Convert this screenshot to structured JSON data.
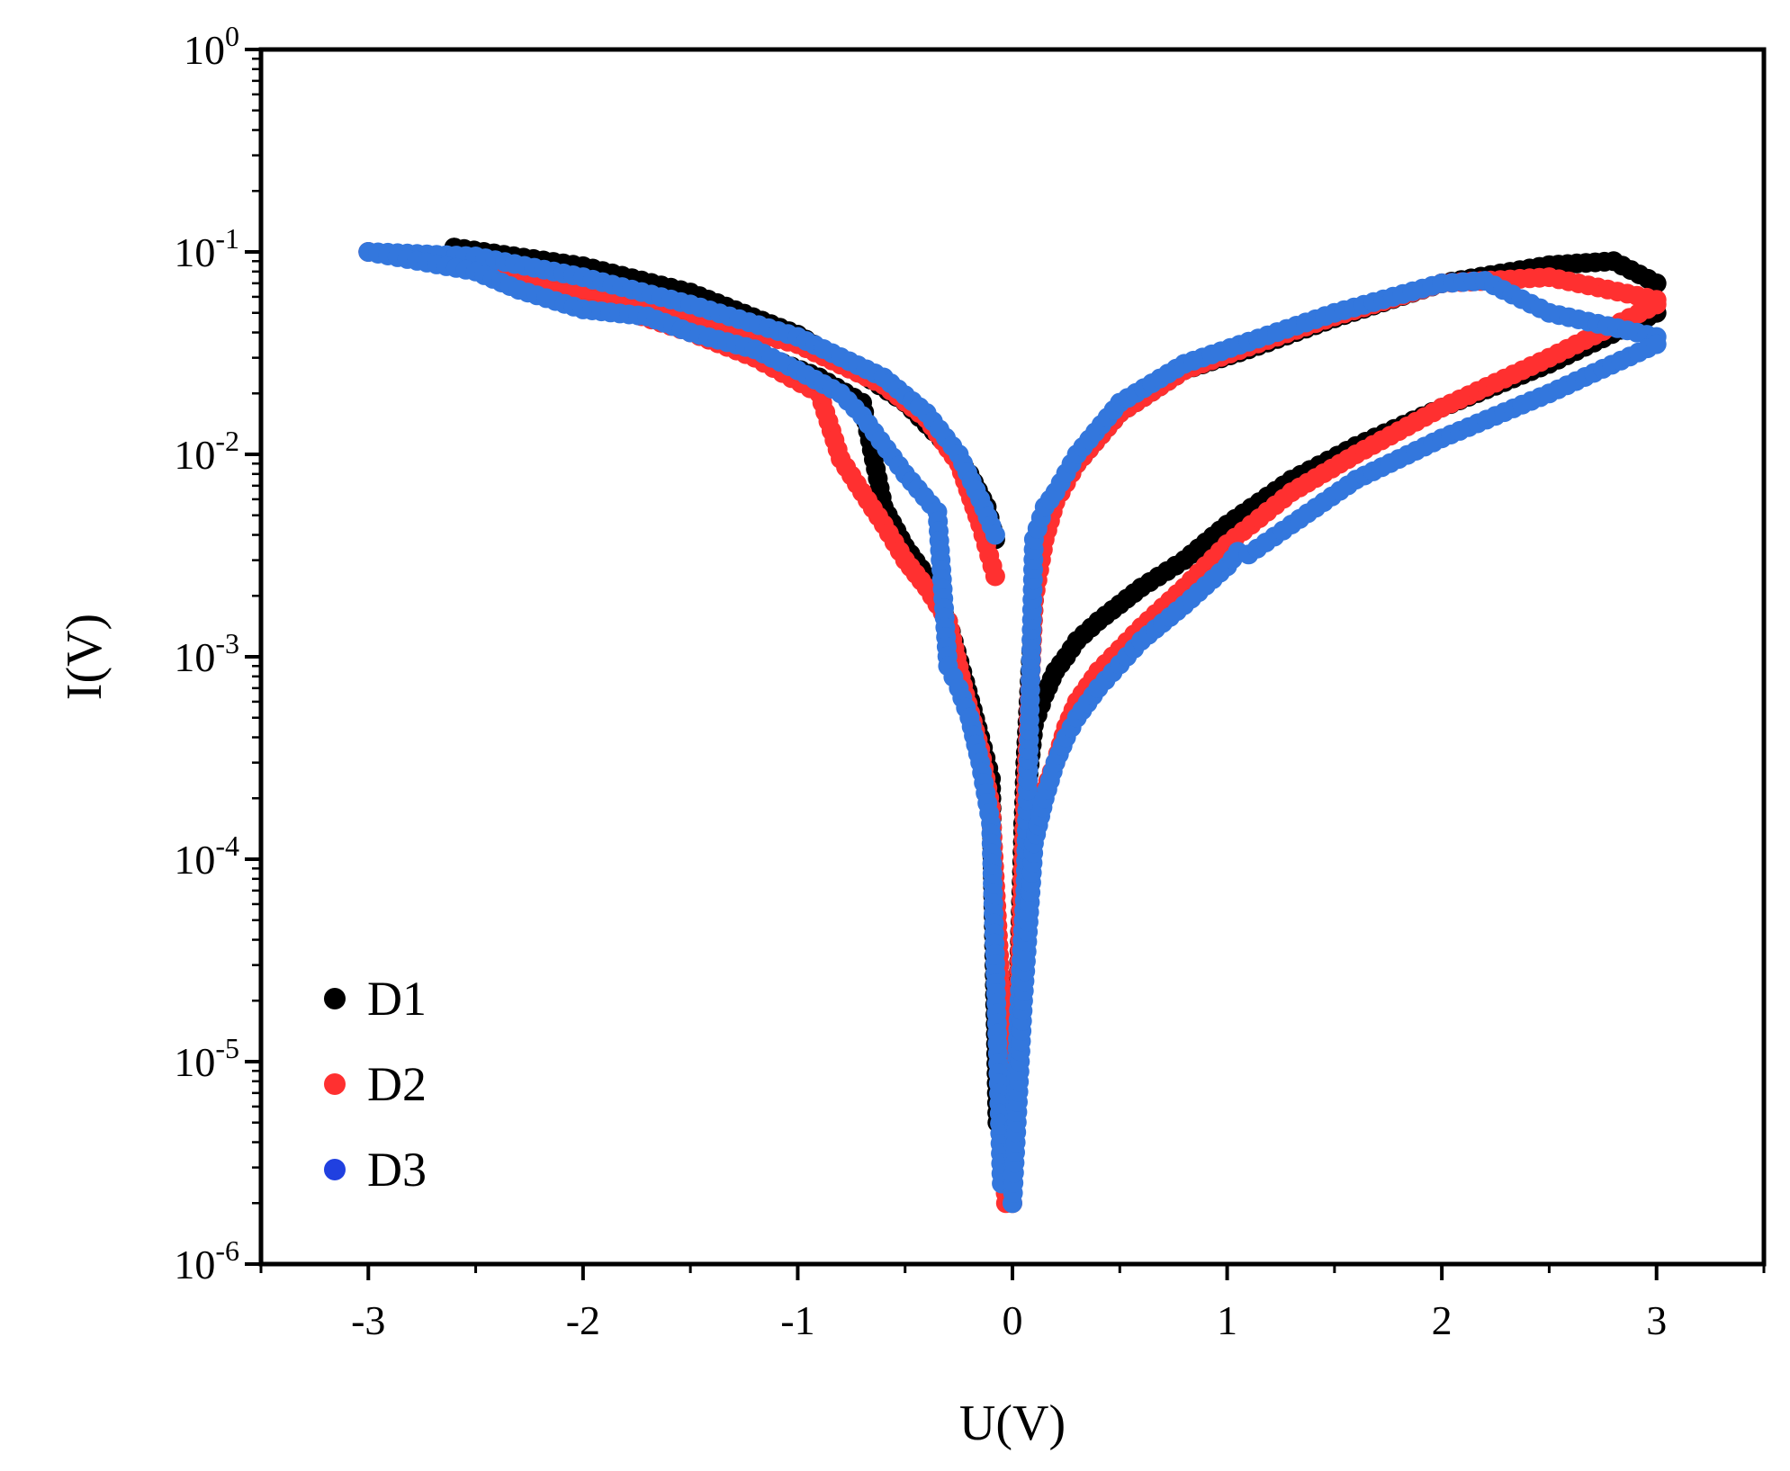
{
  "chart_data": {
    "type": "scatter",
    "title": "",
    "xlabel": "U(V)",
    "ylabel": "I(V)",
    "xlim": [
      -3.5,
      3.5
    ],
    "ylim_log10": [
      -6,
      0
    ],
    "yscale": "log",
    "x_ticks": [
      -3,
      -2,
      -1,
      0,
      1,
      2,
      3
    ],
    "x_tick_labels": [
      "-3",
      "-2",
      "-1",
      "0",
      "1",
      "2",
      "3"
    ],
    "y_ticks": [
      {
        "base": "10",
        "exp": "0"
      },
      {
        "base": "10",
        "exp": "-1"
      },
      {
        "base": "10",
        "exp": "-2"
      },
      {
        "base": "10",
        "exp": "-3"
      },
      {
        "base": "10",
        "exp": "-4"
      },
      {
        "base": "10",
        "exp": "-5"
      },
      {
        "base": "10",
        "exp": "-6"
      }
    ],
    "legend_position": "bottom-left",
    "series": [
      {
        "name": "D1",
        "color": "#000000",
        "line_color": "#555555",
        "branches": [
          {
            "x": [
              -2.6,
              -2.0,
              -1.5,
              -1.0,
              -0.7,
              -0.5,
              -0.3,
              -0.2,
              -0.12,
              -0.08
            ],
            "y": [
              0.105,
              0.085,
              0.063,
              0.039,
              0.025,
              0.018,
              0.011,
              0.008,
              0.0055,
              0.0038
            ]
          },
          {
            "x": [
              -2.6,
              -2.0,
              -1.5,
              -1.2,
              -0.9,
              -0.7,
              -0.6,
              -0.5,
              -0.4,
              -0.3,
              -0.22,
              -0.15,
              -0.1,
              -0.07,
              -0.05
            ],
            "y": [
              0.105,
              0.075,
              0.05,
              0.032,
              0.024,
              0.018,
              0.0055,
              0.0035,
              0.0025,
              0.0015,
              0.00075,
              0.0004,
              0.00025,
              5e-06,
              4.8e-06
            ]
          },
          {
            "x": [
              0.0,
              0.03,
              0.06,
              0.1,
              0.13,
              0.2,
              0.3,
              0.5,
              0.8,
              1.1,
              1.5,
              2.0,
              2.5,
              2.8,
              3.0
            ],
            "y": [
              4.2e-06,
              2.8e-05,
              0.0003,
              0.0019,
              0.0035,
              0.006,
              0.009,
              0.016,
              0.026,
              0.033,
              0.047,
              0.07,
              0.086,
              0.09,
              0.07
            ]
          },
          {
            "x": [
              0.05,
              0.1,
              0.15,
              0.2,
              0.25,
              0.3,
              0.4,
              0.6,
              0.8,
              1.0,
              1.3,
              1.6,
              2.0,
              2.5,
              3.0
            ],
            "y": [
              0.00015,
              0.00046,
              0.00065,
              0.00085,
              0.001,
              0.0012,
              0.0015,
              0.0022,
              0.003,
              0.0045,
              0.0075,
              0.011,
              0.017,
              0.028,
              0.05
            ]
          }
        ]
      },
      {
        "name": "D2",
        "color": "#ff3030",
        "line_color": "#ff3030",
        "branches": [
          {
            "x": [
              -3.0,
              -2.5,
              -2.0,
              -1.5,
              -1.0,
              -0.6,
              -0.4,
              -0.25,
              -0.15,
              -0.08
            ],
            "y": [
              0.1,
              0.09,
              0.065,
              0.048,
              0.035,
              0.022,
              0.015,
              0.009,
              0.0045,
              0.0025
            ]
          },
          {
            "x": [
              -3.0,
              -2.5,
              -2.0,
              -1.5,
              -1.2,
              -0.9,
              -0.8,
              -0.7,
              -0.6,
              -0.5,
              -0.4,
              -0.3,
              -0.22,
              -0.15,
              -0.1,
              -0.06,
              -0.03
            ],
            "y": [
              0.1,
              0.085,
              0.06,
              0.04,
              0.03,
              0.02,
              0.0095,
              0.0065,
              0.0045,
              0.003,
              0.0022,
              0.0015,
              0.00065,
              0.00035,
              0.00018,
              3e-05,
              2e-06
            ]
          },
          {
            "x": [
              0.0,
              0.03,
              0.06,
              0.1,
              0.15,
              0.2,
              0.3,
              0.5,
              0.8,
              1.1,
              1.5,
              2.0,
              2.5,
              3.0
            ],
            "y": [
              2e-06,
              2.5e-05,
              0.0002,
              0.0019,
              0.0038,
              0.0058,
              0.009,
              0.016,
              0.026,
              0.034,
              0.048,
              0.07,
              0.075,
              0.058
            ]
          },
          {
            "x": [
              0.05,
              0.1,
              0.15,
              0.2,
              0.25,
              0.3,
              0.4,
              0.6,
              0.8,
              1.0,
              1.3,
              1.6,
              2.0,
              2.5,
              3.0
            ],
            "y": [
              7e-05,
              0.00015,
              0.00022,
              0.0003,
              0.00045,
              0.0006,
              0.00085,
              0.0014,
              0.0022,
              0.0036,
              0.0065,
              0.01,
              0.017,
              0.03,
              0.055
            ]
          }
        ]
      },
      {
        "name": "D3",
        "color": "#3377dd",
        "line_color": "#3377dd",
        "branches": [
          {
            "x": [
              -3.0,
              -2.5,
              -2.0,
              -1.5,
              -1.0,
              -0.6,
              -0.4,
              -0.25,
              -0.15,
              -0.08
            ],
            "y": [
              0.1,
              0.095,
              0.075,
              0.055,
              0.038,
              0.024,
              0.016,
              0.01,
              0.006,
              0.004
            ]
          },
          {
            "x": [
              -3.0,
              -2.5,
              -2.3,
              -2.0,
              -1.7,
              -1.5,
              -1.2,
              -1.0,
              -0.8,
              -0.7,
              -0.5,
              -0.35,
              -0.3,
              -0.25,
              -0.2,
              -0.15,
              -0.1,
              -0.05
            ],
            "y": [
              0.1,
              0.08,
              0.065,
              0.052,
              0.048,
              0.04,
              0.033,
              0.026,
              0.02,
              0.0155,
              0.008,
              0.0052,
              0.0009,
              0.0007,
              0.0005,
              0.0003,
              0.00015,
              2.5e-06
            ]
          },
          {
            "x": [
              0.0,
              0.03,
              0.06,
              0.1,
              0.15,
              0.2,
              0.3,
              0.5,
              0.8,
              1.1,
              1.5,
              2.0,
              2.2,
              2.5,
              3.0
            ],
            "y": [
              2.5e-06,
              1.8e-05,
              7e-05,
              0.0038,
              0.0055,
              0.0065,
              0.01,
              0.018,
              0.028,
              0.036,
              0.05,
              0.07,
              0.072,
              0.05,
              0.038
            ]
          },
          {
            "x": [
              0.0,
              0.05,
              0.1,
              0.15,
              0.2,
              0.25,
              0.3,
              0.4,
              0.6,
              0.8,
              1.0,
              1.05,
              1.1,
              1.3,
              1.6,
              2.0,
              2.5,
              3.0
            ],
            "y": [
              2e-06,
              2e-05,
              0.00012,
              0.0002,
              0.0003,
              0.0004,
              0.0005,
              0.0007,
              0.0012,
              0.0018,
              0.0028,
              0.0033,
              0.0032,
              0.0045,
              0.0075,
              0.012,
              0.02,
              0.035
            ]
          }
        ]
      }
    ]
  }
}
